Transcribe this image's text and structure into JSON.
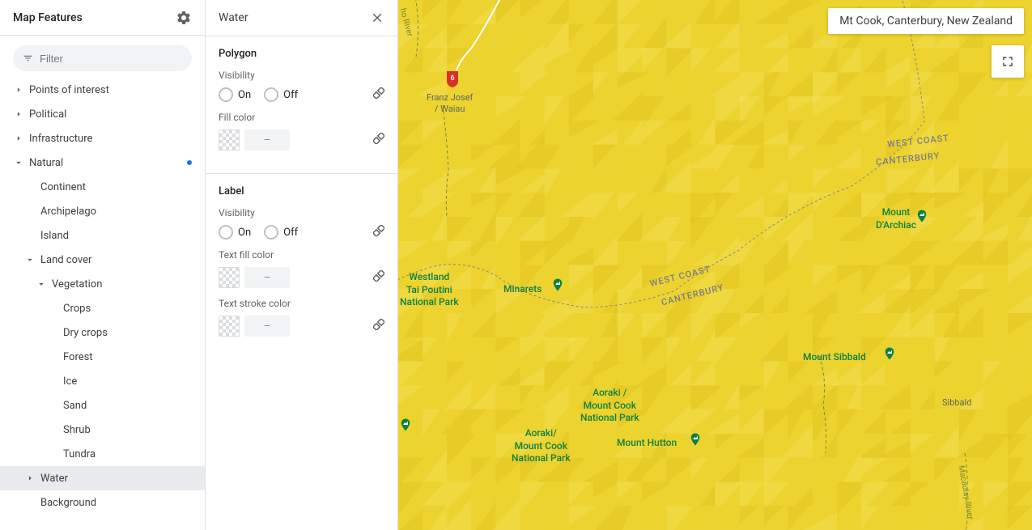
{
  "sidebar": {
    "title": "Map Features",
    "filter_placeholder": "Filter",
    "tree": [
      {
        "label": "Points of interest",
        "depth": 0,
        "arrow": "right"
      },
      {
        "label": "Political",
        "depth": 0,
        "arrow": "right"
      },
      {
        "label": "Infrastructure",
        "depth": 0,
        "arrow": "right"
      },
      {
        "label": "Natural",
        "depth": 0,
        "arrow": "down",
        "dot": true
      },
      {
        "label": "Continent",
        "depth": 1
      },
      {
        "label": "Archipelago",
        "depth": 1
      },
      {
        "label": "Island",
        "depth": 1
      },
      {
        "label": "Land cover",
        "depth": 1,
        "arrow": "down"
      },
      {
        "label": "Vegetation",
        "depth": 2,
        "arrow": "down"
      },
      {
        "label": "Crops",
        "depth": 3
      },
      {
        "label": "Dry crops",
        "depth": 3
      },
      {
        "label": "Forest",
        "depth": 3
      },
      {
        "label": "Ice",
        "depth": 3
      },
      {
        "label": "Sand",
        "depth": 3
      },
      {
        "label": "Shrub",
        "depth": 3
      },
      {
        "label": "Tundra",
        "depth": 3
      },
      {
        "label": "Water",
        "depth": 1,
        "arrow": "right",
        "selected": true
      },
      {
        "label": "Background",
        "depth": 1
      }
    ]
  },
  "panel": {
    "title": "Water",
    "sections": {
      "polygon": {
        "title": "Polygon",
        "visibility_label": "Visibility",
        "on": "On",
        "off": "Off",
        "fill_color_label": "Fill color",
        "color_placeholder": "–"
      },
      "label": {
        "title": "Label",
        "visibility_label": "Visibility",
        "on": "On",
        "off": "Off",
        "text_fill_label": "Text fill color",
        "text_stroke_label": "Text stroke color",
        "color_placeholder": "–"
      }
    }
  },
  "map": {
    "search": "Mt Cook, Canterbury, New Zealand",
    "base_color": "#ecd32f",
    "terrain_light": "#f4e46a",
    "terrain_dark": "#d9bd1a",
    "route_shield": "6",
    "labels": {
      "franz": "Franz Josef\n/ Waiau",
      "westland": "Westland\nTai Poutini\nNational Park",
      "minarets": "Minarets",
      "aoraki1": "Aoraki /\nMount Cook\nNational Park",
      "aoraki2": "Aoraki/\nMount Cook\nNational Park",
      "hutton": "Mount Hutton",
      "sibbald": "Mount Sibbald",
      "sibbald_town": "Sibbald",
      "darchiac": "Mount\nD'Archiac",
      "westcoast1": "WEST COAST",
      "canterbury1": "CANTERBURY",
      "westcoast2": "WEST COAST",
      "canterbury2": "CANTERBURY",
      "river1": "ho River",
      "river2": "Macaulay River"
    }
  }
}
